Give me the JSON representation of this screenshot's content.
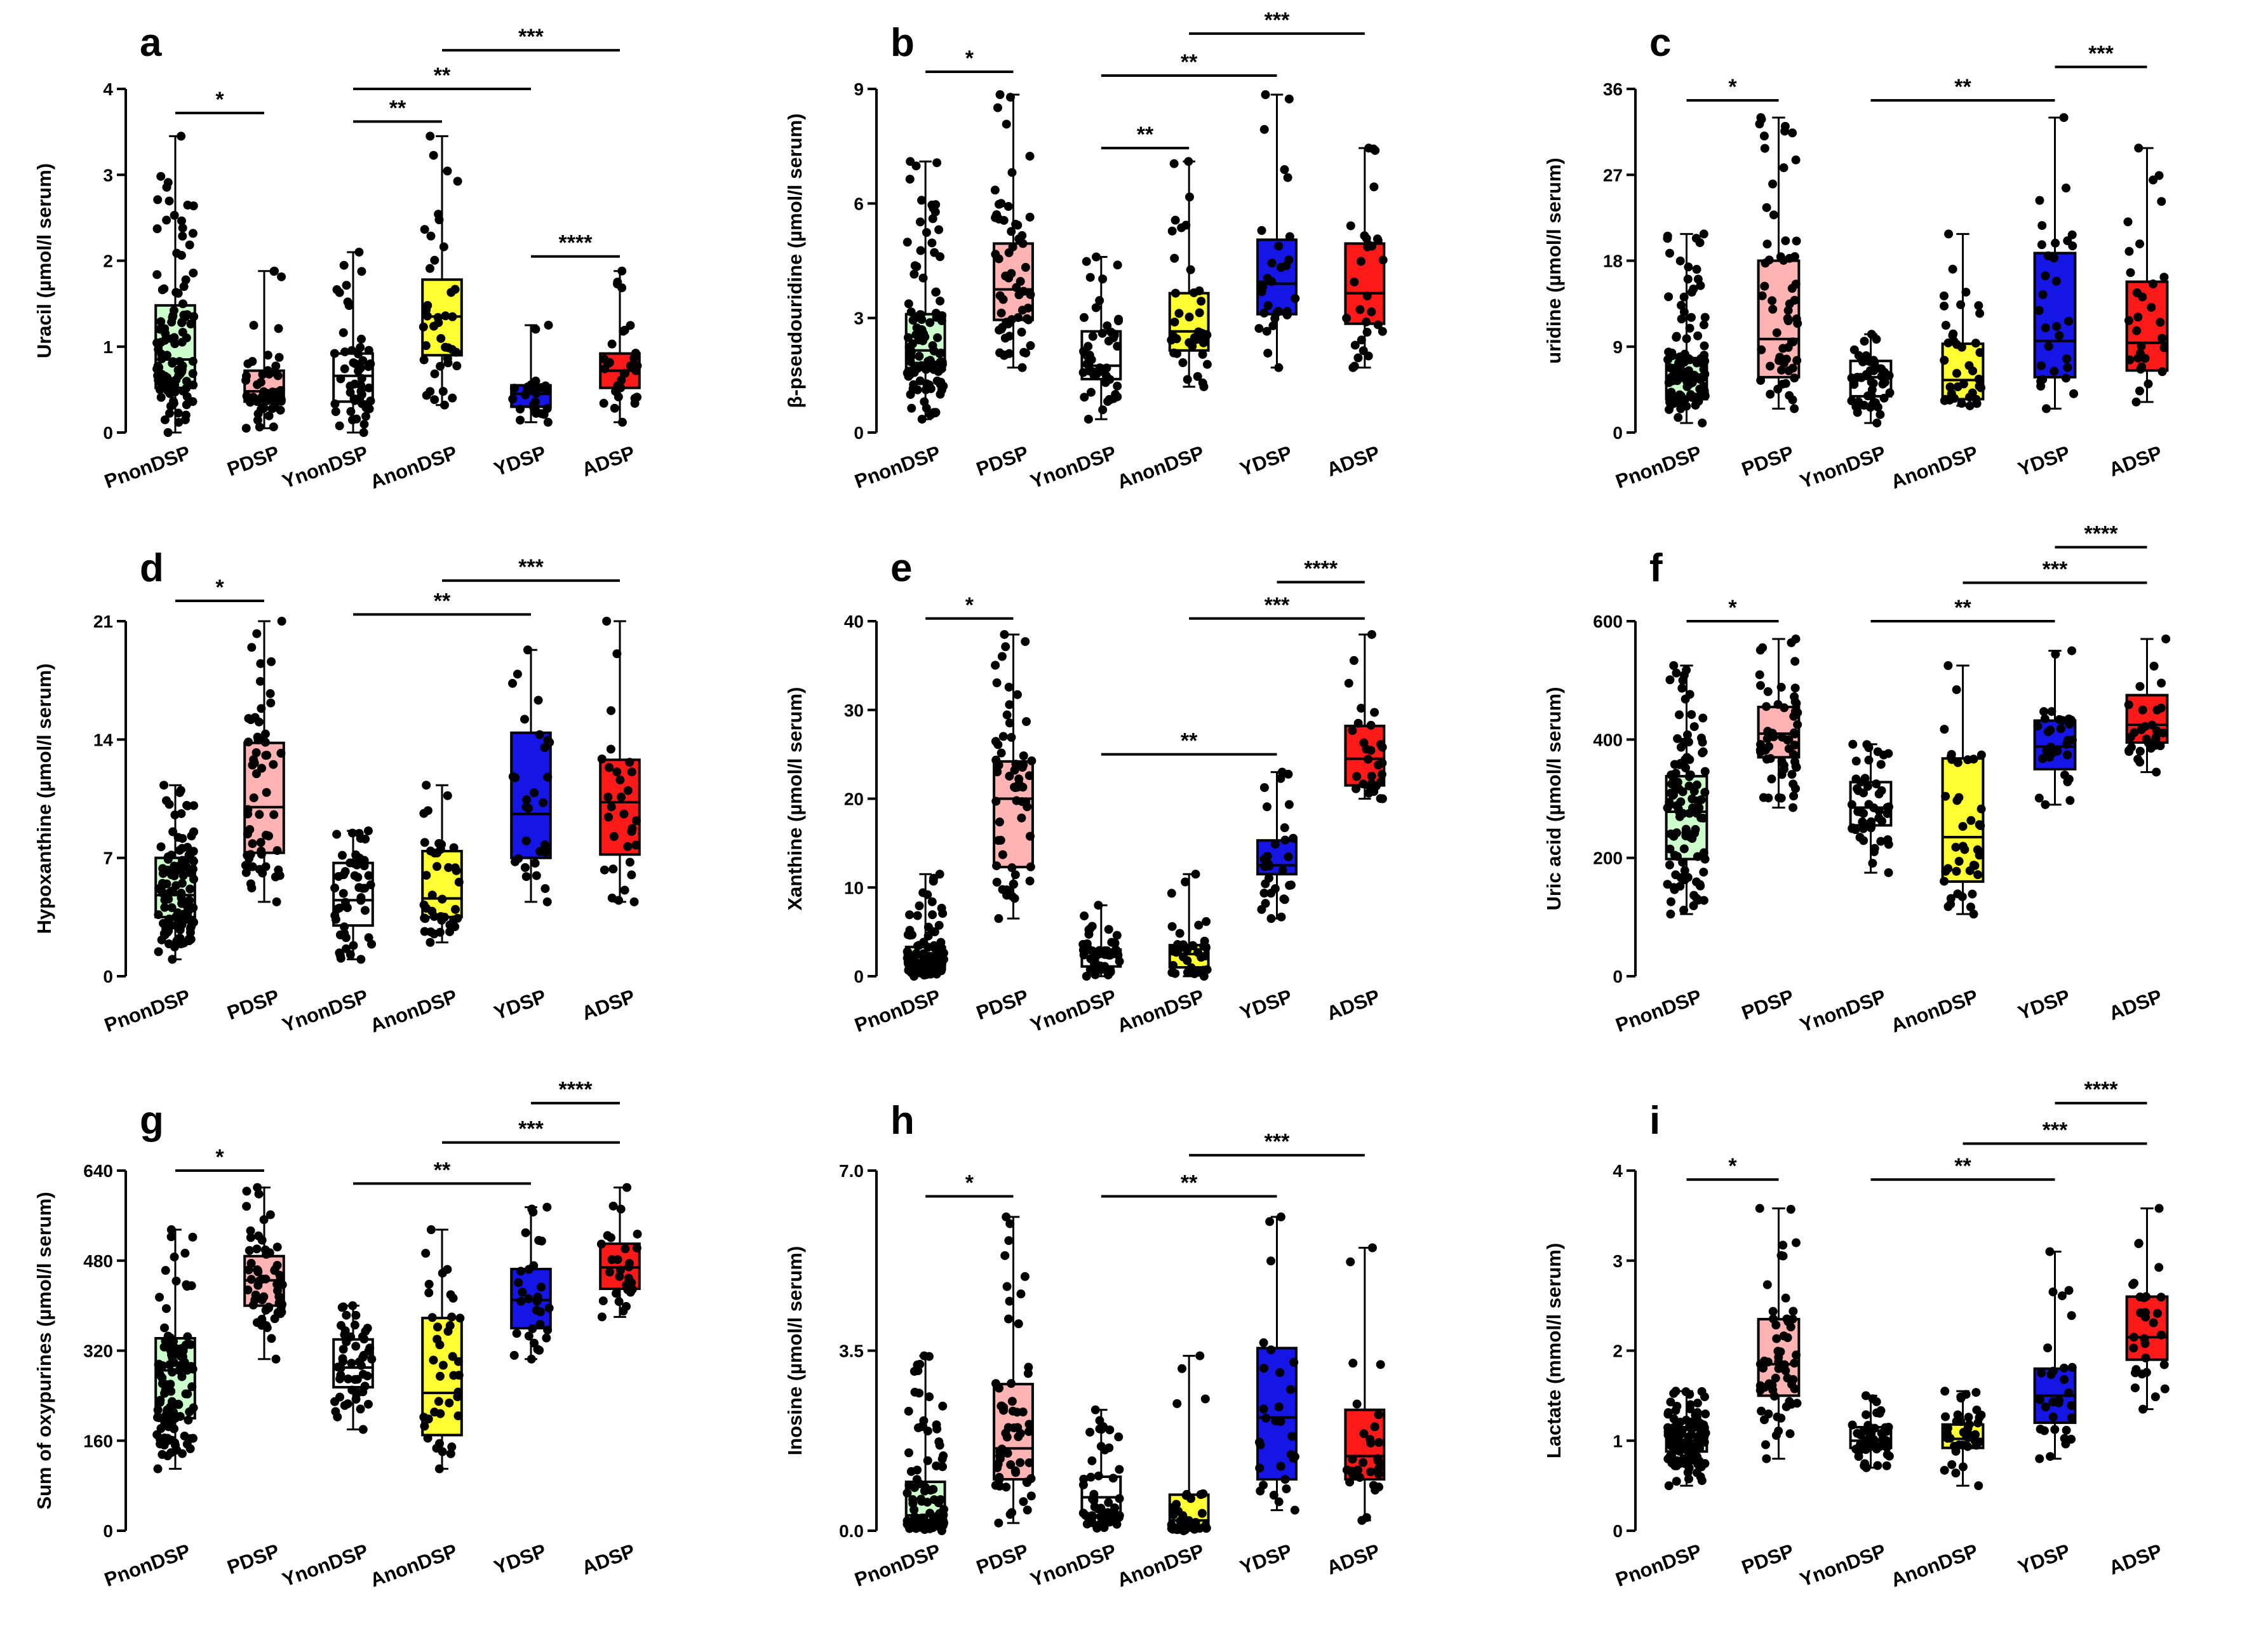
{
  "chart_data": [
    {
      "panel": "a",
      "type": "box",
      "ylabel": "Uracil (µmol/l serum)",
      "categories": [
        "PnonDSP",
        "PDSP",
        "YnonDSP",
        "AnonDSP",
        "YDSP",
        "ADSP"
      ],
      "colors": [
        "#ccffcc",
        "#ffb3b3",
        "#ffffff",
        "#ffff33",
        "#1515e6",
        "#ff1a1a"
      ],
      "ylim": [
        0,
        4
      ],
      "yticks": [
        0,
        1,
        2,
        3,
        4
      ],
      "ytick_labels": [
        "0",
        "1",
        "2",
        "3",
        "4"
      ],
      "boxes": [
        {
          "min": 0.0,
          "q1": 0.52,
          "median": 0.85,
          "q3": 1.48,
          "max": 3.45,
          "n": 110
        },
        {
          "min": 0.05,
          "q1": 0.36,
          "median": 0.48,
          "q3": 0.72,
          "max": 1.88,
          "n": 60
        },
        {
          "min": 0.0,
          "q1": 0.36,
          "median": 0.66,
          "q3": 0.92,
          "max": 2.1,
          "n": 50
        },
        {
          "min": 0.32,
          "q1": 0.9,
          "median": 1.35,
          "q3": 1.78,
          "max": 3.45,
          "n": 40
        },
        {
          "min": 0.12,
          "q1": 0.3,
          "median": 0.45,
          "q3": 0.55,
          "max": 1.25,
          "n": 30
        },
        {
          "min": 0.12,
          "q1": 0.52,
          "median": 0.72,
          "q3": 0.92,
          "max": 1.88,
          "n": 30
        }
      ],
      "comparisons": [
        {
          "from": 0,
          "to": 1,
          "y": 3.72,
          "label": "*"
        },
        {
          "from": 2,
          "to": 3,
          "y": 3.62,
          "label": "**"
        },
        {
          "from": 2,
          "to": 4,
          "y": 4.0,
          "label": "**"
        },
        {
          "from": 3,
          "to": 5,
          "y": 4.45,
          "label": "***"
        },
        {
          "from": 4,
          "to": 5,
          "y": 2.05,
          "label": "****"
        }
      ]
    },
    {
      "panel": "b",
      "type": "box",
      "ylabel": "β-pseudouridine (µmol/l serum)",
      "categories": [
        "PnonDSP",
        "PDSP",
        "YnonDSP",
        "AnonDSP",
        "YDSP",
        "ADSP"
      ],
      "colors": [
        "#ccffcc",
        "#ffb3b3",
        "#ffffff",
        "#ffff33",
        "#1515e6",
        "#ff1a1a"
      ],
      "ylim": [
        0,
        9
      ],
      "yticks": [
        0,
        3,
        6,
        9
      ],
      "ytick_labels": [
        "0",
        "3",
        "6",
        "9"
      ],
      "boxes": [
        {
          "min": 0.35,
          "q1": 1.65,
          "median": 2.15,
          "q3": 3.1,
          "max": 7.1,
          "n": 110
        },
        {
          "min": 1.7,
          "q1": 2.95,
          "median": 3.75,
          "q3": 4.95,
          "max": 8.85,
          "n": 60
        },
        {
          "min": 0.35,
          "q1": 1.4,
          "median": 1.75,
          "q3": 2.65,
          "max": 4.6,
          "n": 50
        },
        {
          "min": 1.2,
          "q1": 2.15,
          "median": 2.65,
          "q3": 3.65,
          "max": 7.1,
          "n": 40
        },
        {
          "min": 1.7,
          "q1": 3.1,
          "median": 3.9,
          "q3": 5.05,
          "max": 8.85,
          "n": 30
        },
        {
          "min": 1.7,
          "q1": 2.85,
          "median": 3.65,
          "q3": 4.95,
          "max": 7.45,
          "n": 30
        }
      ],
      "comparisons": [
        {
          "from": 0,
          "to": 1,
          "y": 9.45,
          "label": "*"
        },
        {
          "from": 2,
          "to": 3,
          "y": 7.45,
          "label": "**"
        },
        {
          "from": 2,
          "to": 4,
          "y": 9.35,
          "label": "**"
        },
        {
          "from": 3,
          "to": 5,
          "y": 10.45,
          "label": "***"
        }
      ]
    },
    {
      "panel": "c",
      "type": "box",
      "ylabel": "uridine (µmol/l serum)",
      "categories": [
        "PnonDSP",
        "PDSP",
        "YnonDSP",
        "AnonDSP",
        "YDSP",
        "ADSP"
      ],
      "colors": [
        "#ccffcc",
        "#ffb3b3",
        "#ffffff",
        "#ffff33",
        "#1515e6",
        "#ff1a1a"
      ],
      "ylim": [
        0,
        36
      ],
      "yticks": [
        0,
        9,
        18,
        27,
        36
      ],
      "ytick_labels": [
        "0",
        "9",
        "18",
        "27",
        "36"
      ],
      "boxes": [
        {
          "min": 1.0,
          "q1": 3.5,
          "median": 5.5,
          "q3": 7.8,
          "max": 20.8,
          "n": 110
        },
        {
          "min": 2.5,
          "q1": 5.8,
          "median": 9.8,
          "q3": 18.0,
          "max": 33.0,
          "n": 60
        },
        {
          "min": 1.0,
          "q1": 3.8,
          "median": 5.8,
          "q3": 7.5,
          "max": 10.3,
          "n": 50
        },
        {
          "min": 2.8,
          "q1": 3.5,
          "median": 5.5,
          "q3": 9.3,
          "max": 20.8,
          "n": 40
        },
        {
          "min": 2.5,
          "q1": 5.8,
          "median": 9.6,
          "q3": 18.8,
          "max": 33.0,
          "n": 30
        },
        {
          "min": 3.2,
          "q1": 6.5,
          "median": 9.4,
          "q3": 15.8,
          "max": 29.8,
          "n": 30
        }
      ],
      "comparisons": [
        {
          "from": 0,
          "to": 1,
          "y": 34.8,
          "label": "*"
        },
        {
          "from": 2,
          "to": 4,
          "y": 34.8,
          "label": "**"
        },
        {
          "from": 4,
          "to": 5,
          "y": 38.3,
          "label": "***"
        }
      ]
    },
    {
      "panel": "d",
      "type": "box",
      "ylabel": "Hypoxanthine (µmol/l serum)",
      "categories": [
        "PnonDSP",
        "PDSP",
        "YnonDSP",
        "AnonDSP",
        "YDSP",
        "ADSP"
      ],
      "colors": [
        "#ccffcc",
        "#ffb3b3",
        "#ffffff",
        "#ffff33",
        "#1515e6",
        "#ff1a1a"
      ],
      "ylim": [
        0,
        21
      ],
      "yticks": [
        0,
        7,
        14,
        21
      ],
      "ytick_labels": [
        "0",
        "7",
        "14",
        "21"
      ],
      "boxes": [
        {
          "min": 1.0,
          "q1": 3.5,
          "median": 4.8,
          "q3": 7.0,
          "max": 11.3,
          "n": 110
        },
        {
          "min": 4.4,
          "q1": 7.3,
          "median": 10.0,
          "q3": 13.8,
          "max": 21.0,
          "n": 60
        },
        {
          "min": 1.0,
          "q1": 3.0,
          "median": 4.5,
          "q3": 6.7,
          "max": 8.6,
          "n": 50
        },
        {
          "min": 2.0,
          "q1": 3.5,
          "median": 4.6,
          "q3": 7.4,
          "max": 11.3,
          "n": 40
        },
        {
          "min": 4.4,
          "q1": 7.0,
          "median": 9.6,
          "q3": 14.4,
          "max": 19.3,
          "n": 30
        },
        {
          "min": 4.4,
          "q1": 7.2,
          "median": 10.3,
          "q3": 12.8,
          "max": 21.0,
          "n": 30
        }
      ],
      "comparisons": [
        {
          "from": 0,
          "to": 1,
          "y": 22.2,
          "label": "*"
        },
        {
          "from": 2,
          "to": 4,
          "y": 21.4,
          "label": "**"
        },
        {
          "from": 3,
          "to": 5,
          "y": 23.4,
          "label": "***"
        }
      ]
    },
    {
      "panel": "e",
      "type": "box",
      "ylabel": "Xanthine (µmol/l serum)",
      "categories": [
        "PnonDSP",
        "PDSP",
        "YnonDSP",
        "AnonDSP",
        "YDSP",
        "ADSP"
      ],
      "colors": [
        "#ccffcc",
        "#ffb3b3",
        "#ffffff",
        "#ffff33",
        "#1515e6",
        "#ff1a1a"
      ],
      "ylim": [
        0,
        40
      ],
      "yticks": [
        0,
        10,
        20,
        30,
        40
      ],
      "ytick_labels": [
        "0",
        "10",
        "20",
        "30",
        "40"
      ],
      "boxes": [
        {
          "min": 0.0,
          "q1": 0.8,
          "median": 1.8,
          "q3": 3.3,
          "max": 11.5,
          "n": 110
        },
        {
          "min": 6.5,
          "q1": 12.3,
          "median": 20.0,
          "q3": 24.2,
          "max": 38.5,
          "n": 60
        },
        {
          "min": 0.0,
          "q1": 1.1,
          "median": 2.2,
          "q3": 3.0,
          "max": 8.0,
          "n": 50
        },
        {
          "min": 0.0,
          "q1": 1.0,
          "median": 2.5,
          "q3": 3.5,
          "max": 11.5,
          "n": 40
        },
        {
          "min": 6.5,
          "q1": 11.5,
          "median": 12.5,
          "q3": 15.3,
          "max": 23.0,
          "n": 30
        },
        {
          "min": 20.0,
          "q1": 21.5,
          "median": 24.5,
          "q3": 28.2,
          "max": 38.5,
          "n": 30
        }
      ],
      "comparisons": [
        {
          "from": 0,
          "to": 1,
          "y": 40.3,
          "label": "*"
        },
        {
          "from": 2,
          "to": 4,
          "y": 25.0,
          "label": "**"
        },
        {
          "from": 3,
          "to": 5,
          "y": 40.3,
          "label": "***"
        },
        {
          "from": 4,
          "to": 5,
          "y": 44.4,
          "label": "****"
        }
      ]
    },
    {
      "panel": "f",
      "type": "box",
      "ylabel": "Uric acid (µmol/l serum)",
      "categories": [
        "PnonDSP",
        "PDSP",
        "YnonDSP",
        "AnonDSP",
        "YDSP",
        "ADSP"
      ],
      "colors": [
        "#ccffcc",
        "#ffb3b3",
        "#ffffff",
        "#ffff33",
        "#1515e6",
        "#ff1a1a"
      ],
      "ylim": [
        0,
        600
      ],
      "yticks": [
        0,
        200,
        400,
        600
      ],
      "ytick_labels": [
        "0",
        "200",
        "400",
        "600"
      ],
      "boxes": [
        {
          "min": 105,
          "q1": 198,
          "median": 278,
          "q3": 338,
          "max": 525,
          "n": 110
        },
        {
          "min": 285,
          "q1": 370,
          "median": 410,
          "q3": 455,
          "max": 570,
          "n": 60
        },
        {
          "min": 175,
          "q1": 255,
          "median": 285,
          "q3": 328,
          "max": 392,
          "n": 50
        },
        {
          "min": 105,
          "q1": 160,
          "median": 235,
          "q3": 368,
          "max": 525,
          "n": 40
        },
        {
          "min": 290,
          "q1": 350,
          "median": 388,
          "q3": 432,
          "max": 550,
          "n": 30
        },
        {
          "min": 345,
          "q1": 395,
          "median": 425,
          "q3": 475,
          "max": 570,
          "n": 30
        }
      ],
      "comparisons": [
        {
          "from": 0,
          "to": 1,
          "y": 600,
          "label": "*"
        },
        {
          "from": 2,
          "to": 4,
          "y": 600,
          "label": "**"
        },
        {
          "from": 3,
          "to": 5,
          "y": 665,
          "label": "***"
        },
        {
          "from": 4,
          "to": 5,
          "y": 725,
          "label": "****"
        }
      ]
    },
    {
      "panel": "g",
      "type": "box",
      "ylabel": "Sum of oxypurines (µmol/l serum)",
      "categories": [
        "PnonDSP",
        "PDSP",
        "YnonDSP",
        "AnonDSP",
        "YDSP",
        "ADSP"
      ],
      "colors": [
        "#ccffcc",
        "#ffb3b3",
        "#ffffff",
        "#ffff33",
        "#1515e6",
        "#ff1a1a"
      ],
      "ylim": [
        0,
        640
      ],
      "yticks": [
        0,
        160,
        320,
        480,
        640
      ],
      "ytick_labels": [
        "0",
        "160",
        "320",
        "480",
        "640"
      ],
      "boxes": [
        {
          "min": 110,
          "q1": 200,
          "median": 285,
          "q3": 342,
          "max": 535,
          "n": 110
        },
        {
          "min": 305,
          "q1": 400,
          "median": 445,
          "q3": 488,
          "max": 610,
          "n": 60
        },
        {
          "min": 180,
          "q1": 255,
          "median": 290,
          "q3": 340,
          "max": 400,
          "n": 50
        },
        {
          "min": 110,
          "q1": 170,
          "median": 245,
          "q3": 378,
          "max": 535,
          "n": 40
        },
        {
          "min": 305,
          "q1": 360,
          "median": 410,
          "q3": 465,
          "max": 575,
          "n": 30
        },
        {
          "min": 380,
          "q1": 430,
          "median": 468,
          "q3": 510,
          "max": 610,
          "n": 30
        }
      ],
      "comparisons": [
        {
          "from": 0,
          "to": 1,
          "y": 640,
          "label": "*"
        },
        {
          "from": 2,
          "to": 4,
          "y": 617,
          "label": "**"
        },
        {
          "from": 3,
          "to": 5,
          "y": 690,
          "label": "***"
        },
        {
          "from": 4,
          "to": 5,
          "y": 760,
          "label": "****"
        }
      ]
    },
    {
      "panel": "h",
      "type": "box",
      "ylabel": "Inosine (µmol/l serum)",
      "categories": [
        "PnonDSP",
        "PDSP",
        "YnonDSP",
        "AnonDSP",
        "YDSP",
        "ADSP"
      ],
      "colors": [
        "#ccffcc",
        "#ffb3b3",
        "#ffffff",
        "#ffff33",
        "#1515e6",
        "#ff1a1a"
      ],
      "ylim": [
        0,
        7
      ],
      "yticks": [
        0,
        3.5,
        7
      ],
      "ytick_labels": [
        "0.0",
        "3.5",
        "7.0"
      ],
      "boxes": [
        {
          "min": 0.0,
          "q1": 0.15,
          "median": 0.3,
          "q3": 0.95,
          "max": 3.4,
          "n": 110
        },
        {
          "min": 0.15,
          "q1": 1.0,
          "median": 1.6,
          "q3": 2.85,
          "max": 6.1,
          "n": 60
        },
        {
          "min": 0.05,
          "q1": 0.3,
          "median": 0.65,
          "q3": 1.05,
          "max": 2.35,
          "n": 50
        },
        {
          "min": 0.0,
          "q1": 0.05,
          "median": 0.2,
          "q3": 0.7,
          "max": 3.4,
          "n": 40
        },
        {
          "min": 0.4,
          "q1": 1.0,
          "median": 2.2,
          "q3": 3.55,
          "max": 6.1,
          "n": 30
        },
        {
          "min": 0.2,
          "q1": 1.0,
          "median": 1.45,
          "q3": 2.35,
          "max": 5.5,
          "n": 30
        }
      ],
      "comparisons": [
        {
          "from": 0,
          "to": 1,
          "y": 6.5,
          "label": "*"
        },
        {
          "from": 2,
          "to": 4,
          "y": 6.5,
          "label": "**"
        },
        {
          "from": 3,
          "to": 5,
          "y": 7.3,
          "label": "***"
        }
      ]
    },
    {
      "panel": "i",
      "type": "box",
      "ylabel": "Lactate (mmol/l serum)",
      "categories": [
        "PnonDSP",
        "PDSP",
        "YnonDSP",
        "AnonDSP",
        "YDSP",
        "ADSP"
      ],
      "colors": [
        "#ccffcc",
        "#ffb3b3",
        "#ffffff",
        "#ffff33",
        "#1515e6",
        "#ff1a1a"
      ],
      "ylim": [
        0,
        4
      ],
      "yticks": [
        0,
        1,
        2,
        3,
        4
      ],
      "ytick_labels": [
        "0",
        "1",
        "2",
        "3",
        "4"
      ],
      "boxes": [
        {
          "min": 0.5,
          "q1": 0.88,
          "median": 1.0,
          "q3": 1.15,
          "max": 1.55,
          "n": 110
        },
        {
          "min": 0.8,
          "q1": 1.5,
          "median": 1.85,
          "q3": 2.35,
          "max": 3.58,
          "n": 60
        },
        {
          "min": 0.7,
          "q1": 0.92,
          "median": 1.0,
          "q3": 1.15,
          "max": 1.5,
          "n": 50
        },
        {
          "min": 0.5,
          "q1": 0.92,
          "median": 1.02,
          "q3": 1.18,
          "max": 1.55,
          "n": 40
        },
        {
          "min": 0.8,
          "q1": 1.2,
          "median": 1.5,
          "q3": 1.8,
          "max": 3.1,
          "n": 30
        },
        {
          "min": 1.35,
          "q1": 1.9,
          "median": 2.15,
          "q3": 2.6,
          "max": 3.58,
          "n": 30
        }
      ],
      "comparisons": [
        {
          "from": 0,
          "to": 1,
          "y": 3.9,
          "label": "*"
        },
        {
          "from": 2,
          "to": 4,
          "y": 3.9,
          "label": "**"
        },
        {
          "from": 3,
          "to": 5,
          "y": 4.3,
          "label": "***"
        },
        {
          "from": 4,
          "to": 5,
          "y": 4.75,
          "label": "****"
        }
      ]
    }
  ]
}
